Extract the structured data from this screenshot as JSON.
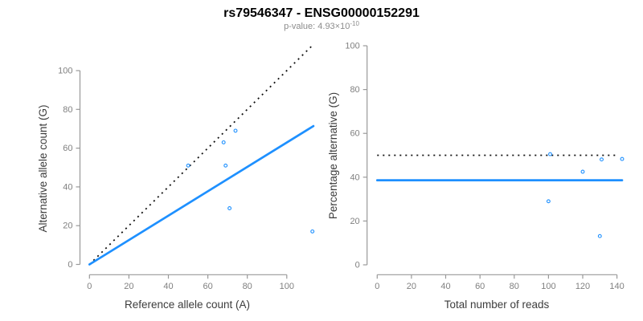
{
  "header": {
    "title": "rs79546347 - ENSG00000152291",
    "subtitle_prefix": "p-value: 4.93×10",
    "subtitle_exponent": "-10"
  },
  "colors": {
    "point_blue": "#1e90ff",
    "fit_line_blue": "#1e90ff",
    "reference_line_black": "#111111",
    "axis_line": "#999999",
    "tick_label": "#808080",
    "axis_title": "#3c3c3c",
    "title": "#000000",
    "subtitle": "#8c8c8c",
    "background": "#ffffff"
  },
  "chart_data": [
    {
      "type": "scatter",
      "panel": "left",
      "xlabel": "Reference allele count (A)",
      "ylabel": "Alternative allele count (G)",
      "xticks": [
        0,
        20,
        40,
        60,
        80,
        100
      ],
      "yticks": [
        0,
        20,
        40,
        60,
        80,
        100
      ],
      "xlim": [
        0,
        113
      ],
      "ylim": [
        0,
        113
      ],
      "grid": false,
      "legend": "none",
      "marker": "open-circle",
      "points": [
        {
          "x": 50,
          "y": 51
        },
        {
          "x": 68,
          "y": 63
        },
        {
          "x": 74,
          "y": 69
        },
        {
          "x": 69,
          "y": 51
        },
        {
          "x": 71,
          "y": 29
        },
        {
          "x": 113,
          "y": 17
        }
      ],
      "lines": [
        {
          "name": "identity-line",
          "style": "dotted",
          "color": "#111111",
          "x1": 0,
          "y1": 0,
          "x2": 113,
          "y2": 113
        },
        {
          "name": "fit-line",
          "style": "solid",
          "color": "#1e90ff",
          "x1": 0,
          "y1": 0,
          "x2": 113.5,
          "y2": 71.4
        }
      ]
    },
    {
      "type": "scatter",
      "panel": "right",
      "xlabel": "Total number of reads",
      "ylabel": "Percentage alternative (G)",
      "xticks": [
        0,
        20,
        40,
        60,
        80,
        100,
        120,
        140
      ],
      "yticks": [
        0,
        20,
        40,
        60,
        80,
        100
      ],
      "xlim": [
        0,
        143
      ],
      "ylim": [
        0,
        100
      ],
      "grid": false,
      "legend": "none",
      "marker": "open-circle",
      "points": [
        {
          "x": 101,
          "y": 50.5
        },
        {
          "x": 131,
          "y": 48.1
        },
        {
          "x": 143,
          "y": 48.3
        },
        {
          "x": 120,
          "y": 42.5
        },
        {
          "x": 100,
          "y": 29.0
        },
        {
          "x": 130,
          "y": 13.1
        }
      ],
      "lines": [
        {
          "name": "fifty-percent-line",
          "style": "dotted",
          "color": "#111111",
          "x1": 0,
          "y1": 50,
          "x2": 141,
          "y2": 50
        },
        {
          "name": "fit-line",
          "style": "solid",
          "color": "#1e90ff",
          "x1": 0,
          "y1": 38.6,
          "x2": 143,
          "y2": 38.6
        }
      ]
    }
  ]
}
